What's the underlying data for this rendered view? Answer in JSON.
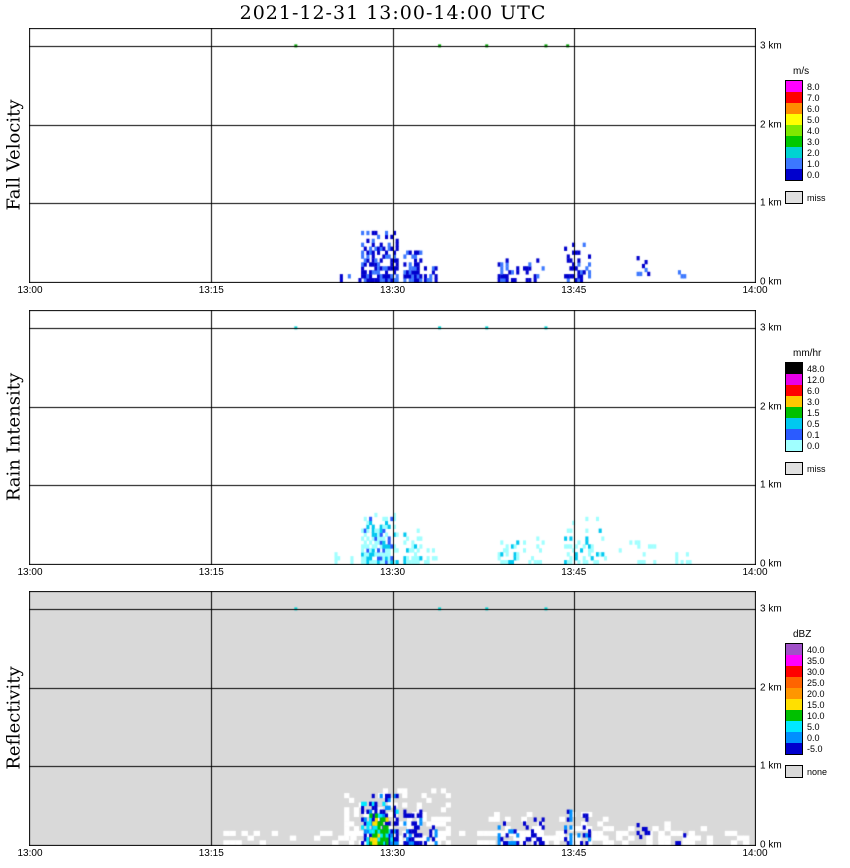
{
  "title": "2021-12-31  13:00-14:00 UTC",
  "seed": 20211231,
  "time_axis": {
    "ticks": [
      {
        "t": 0,
        "label": "13:00"
      },
      {
        "t": 15,
        "label": "13:15"
      },
      {
        "t": 30,
        "label": "13:30"
      },
      {
        "t": 45,
        "label": "13:45"
      },
      {
        "t": 60,
        "label": "14:00"
      }
    ]
  },
  "height_axis": {
    "labels": [
      {
        "km": 0,
        "label": "0 km"
      },
      {
        "km": 1,
        "label": "1 km"
      },
      {
        "km": 2,
        "label": "2 km"
      },
      {
        "km": 3,
        "label": "3 km"
      }
    ]
  },
  "chart_data": [
    {
      "type": "heatmap",
      "ylabel": "Fall Velocity",
      "units": "m/s",
      "background": "#ffffff",
      "legend": [
        {
          "label": "8.0",
          "color": "#ff00ff"
        },
        {
          "label": "7.0",
          "color": "#ff0000"
        },
        {
          "label": "6.0",
          "color": "#ff8c00"
        },
        {
          "label": "5.0",
          "color": "#ffff00"
        },
        {
          "label": "4.0",
          "color": "#7fe800"
        },
        {
          "label": "3.0",
          "color": "#00c800"
        },
        {
          "label": "2.0",
          "color": "#00d2d2"
        },
        {
          "label": "1.0",
          "color": "#3c78ff"
        },
        {
          "label": "0.0",
          "color": "#0000cd"
        }
      ],
      "missing": {
        "label": "miss",
        "color": "#e0e0e0"
      },
      "top_dot_color": "#00a000",
      "top_dots": [
        22.0,
        33.9,
        37.8,
        42.7,
        44.5
      ],
      "echo_clusters": [
        {
          "t0": 27.4,
          "t1": 30.3,
          "h0": 0.0,
          "h1": 0.64,
          "density": 0.9,
          "falloff": 0.75,
          "values": [
            "0.0",
            "0.0",
            "0.0",
            "1.0",
            "1.0"
          ]
        },
        {
          "t0": 30.9,
          "t1": 32.4,
          "h0": 0.0,
          "h1": 0.4,
          "density": 0.8,
          "falloff": 0.7,
          "values": [
            "0.0",
            "0.0",
            "1.0"
          ]
        },
        {
          "t0": 32.6,
          "t1": 33.6,
          "h0": 0.0,
          "h1": 0.22,
          "density": 0.6,
          "falloff": 0.6,
          "values": [
            "0.0",
            "1.0"
          ]
        },
        {
          "t0": 25.2,
          "t1": 27.2,
          "h0": 0.0,
          "h1": 0.14,
          "density": 0.3,
          "falloff": 0.3,
          "values": [
            "0.0",
            "1.0"
          ]
        },
        {
          "t0": 38.7,
          "t1": 40.4,
          "h0": 0.0,
          "h1": 0.3,
          "density": 0.42,
          "falloff": 0.5,
          "values": [
            "0.0",
            "1.0"
          ]
        },
        {
          "t0": 40.8,
          "t1": 42.4,
          "h0": 0.0,
          "h1": 0.32,
          "density": 0.38,
          "falloff": 0.5,
          "values": [
            "0.0",
            "0.0",
            "1.0"
          ]
        },
        {
          "t0": 44.2,
          "t1": 46.3,
          "h0": 0.0,
          "h1": 0.45,
          "density": 0.5,
          "falloff": 0.6,
          "values": [
            "0.0",
            "0.0",
            "1.0"
          ]
        },
        {
          "t0": 50.2,
          "t1": 51.3,
          "h0": 0.08,
          "h1": 0.3,
          "density": 0.3,
          "falloff": 0.2,
          "values": [
            "1.0",
            "0.0"
          ]
        },
        {
          "t0": 53.4,
          "t1": 54.1,
          "h0": 0.0,
          "h1": 0.12,
          "density": 0.35,
          "falloff": 0.2,
          "values": [
            "1.0"
          ]
        }
      ]
    },
    {
      "type": "heatmap",
      "ylabel": "Rain Intensity",
      "units": "mm/hr",
      "background": "#ffffff",
      "legend": [
        {
          "label": "48.0",
          "color": "#000000"
        },
        {
          "label": "12.0",
          "color": "#e800e8"
        },
        {
          "label": "6.0",
          "color": "#ff0000"
        },
        {
          "label": "3.0",
          "color": "#ffc800"
        },
        {
          "label": "1.5",
          "color": "#00c000"
        },
        {
          "label": "0.5",
          "color": "#00c8f0"
        },
        {
          "label": "0.1",
          "color": "#2b5bff"
        },
        {
          "label": "0.0",
          "color": "#a0ffff"
        }
      ],
      "missing": {
        "label": "miss",
        "color": "#e0e0e0"
      },
      "top_dot_color": "#00d2d2",
      "top_dots": [
        22.0,
        33.9,
        37.8,
        42.7
      ],
      "echo_clusters": [
        {
          "t0": 27.4,
          "t1": 30.3,
          "h0": 0.0,
          "h1": 0.64,
          "density": 0.85,
          "falloff": 0.75,
          "values": [
            "0.0",
            "0.0",
            "0.0",
            "0.5",
            "0.1"
          ]
        },
        {
          "t0": 30.9,
          "t1": 32.4,
          "h0": 0.0,
          "h1": 0.4,
          "density": 0.7,
          "falloff": 0.7,
          "values": [
            "0.0",
            "0.0",
            "0.5"
          ]
        },
        {
          "t0": 32.6,
          "t1": 33.6,
          "h0": 0.0,
          "h1": 0.22,
          "density": 0.5,
          "falloff": 0.5,
          "values": [
            "0.0"
          ]
        },
        {
          "t0": 25.2,
          "t1": 27.2,
          "h0": 0.0,
          "h1": 0.14,
          "density": 0.25,
          "falloff": 0.3,
          "values": [
            "0.0"
          ]
        },
        {
          "t0": 38.7,
          "t1": 40.4,
          "h0": 0.0,
          "h1": 0.3,
          "density": 0.35,
          "falloff": 0.5,
          "values": [
            "0.0",
            "0.5"
          ]
        },
        {
          "t0": 40.8,
          "t1": 42.4,
          "h0": 0.0,
          "h1": 0.32,
          "density": 0.3,
          "falloff": 0.5,
          "values": [
            "0.0"
          ]
        },
        {
          "t0": 44.2,
          "t1": 47.6,
          "h0": 0.0,
          "h1": 0.58,
          "density": 0.35,
          "falloff": 0.6,
          "values": [
            "0.0",
            "0.0",
            "0.5"
          ]
        },
        {
          "t0": 48.5,
          "t1": 52.0,
          "h0": 0.0,
          "h1": 0.3,
          "density": 0.2,
          "falloff": 0.3,
          "values": [
            "0.0"
          ]
        },
        {
          "t0": 53.4,
          "t1": 54.6,
          "h0": 0.0,
          "h1": 0.12,
          "density": 0.25,
          "falloff": 0.2,
          "values": [
            "0.0"
          ]
        }
      ]
    },
    {
      "type": "heatmap",
      "ylabel": "Reflectivity",
      "units": "dBZ",
      "background": "#d9d9d9",
      "legend": [
        {
          "label": "40.0",
          "color": "#a050c8"
        },
        {
          "label": "35.0",
          "color": "#ff00ff"
        },
        {
          "label": "30.0",
          "color": "#ff0000"
        },
        {
          "label": "25.0",
          "color": "#ff6400"
        },
        {
          "label": "20.0",
          "color": "#ff9600"
        },
        {
          "label": "15.0",
          "color": "#ffe000"
        },
        {
          "label": "10.0",
          "color": "#00c000"
        },
        {
          "label": "5.0",
          "color": "#00e8ff"
        },
        {
          "label": "0.0",
          "color": "#0090ff"
        },
        {
          "label": "-5.0",
          "color": "#0000cd"
        }
      ],
      "missing": {
        "label": "none",
        "color": "#d9d9d9"
      },
      "top_dot_color": "#00d2d2",
      "top_dots": [
        22.0,
        33.9,
        37.8,
        42.7
      ],
      "echo_clusters": [
        {
          "t0": 15.5,
          "t1": 59.5,
          "h0": 0.0,
          "h1": 0.18,
          "density": 0.3,
          "cell_t": 0.5,
          "cell_h": 0.06,
          "color": "#ffffff"
        },
        {
          "t0": 26.0,
          "t1": 34.6,
          "h0": 0.0,
          "h1": 0.72,
          "density": 0.45,
          "falloff": 0.5,
          "cell_t": 0.4,
          "cell_h": 0.06,
          "color": "#ffffff"
        },
        {
          "t0": 37.5,
          "t1": 48.0,
          "h0": 0.0,
          "h1": 0.42,
          "density": 0.35,
          "falloff": 0.4,
          "cell_t": 0.45,
          "cell_h": 0.06,
          "color": "#ffffff"
        },
        {
          "t0": 49.0,
          "t1": 56.5,
          "h0": 0.0,
          "h1": 0.28,
          "density": 0.25,
          "falloff": 0.3,
          "cell_t": 0.5,
          "cell_h": 0.06,
          "color": "#ffffff"
        },
        {
          "t0": 27.4,
          "t1": 30.3,
          "h0": 0.0,
          "h1": 0.64,
          "density": 0.85,
          "falloff": 0.7,
          "values": [
            "-5.0",
            "0.0",
            "5.0",
            "-5.0"
          ]
        },
        {
          "t0": 28.1,
          "t1": 29.5,
          "h0": 0.0,
          "h1": 0.36,
          "density": 0.85,
          "falloff": 0.4,
          "values": [
            "10.0",
            "10.0",
            "5.0",
            "15.0"
          ]
        },
        {
          "t0": 30.9,
          "t1": 32.4,
          "h0": 0.0,
          "h1": 0.4,
          "density": 0.75,
          "falloff": 0.6,
          "values": [
            "-5.0",
            "-5.0",
            "0.0"
          ]
        },
        {
          "t0": 32.6,
          "t1": 33.6,
          "h0": 0.0,
          "h1": 0.22,
          "density": 0.55,
          "falloff": 0.4,
          "values": [
            "-5.0",
            "0.0"
          ]
        },
        {
          "t0": 38.7,
          "t1": 40.4,
          "h0": 0.0,
          "h1": 0.3,
          "density": 0.35,
          "falloff": 0.5,
          "values": [
            "-5.0",
            "0.0"
          ]
        },
        {
          "t0": 40.8,
          "t1": 42.4,
          "h0": 0.0,
          "h1": 0.32,
          "density": 0.3,
          "falloff": 0.5,
          "values": [
            "-5.0"
          ]
        },
        {
          "t0": 44.2,
          "t1": 46.3,
          "h0": 0.0,
          "h1": 0.45,
          "density": 0.4,
          "falloff": 0.6,
          "values": [
            "-5.0",
            "0.0"
          ]
        },
        {
          "t0": 50.2,
          "t1": 51.3,
          "h0": 0.08,
          "h1": 0.3,
          "density": 0.25,
          "falloff": 0.2,
          "values": [
            "-5.0"
          ]
        },
        {
          "t0": 53.4,
          "t1": 54.1,
          "h0": 0.0,
          "h1": 0.12,
          "density": 0.3,
          "falloff": 0.2,
          "values": [
            "-5.0"
          ]
        }
      ]
    }
  ]
}
